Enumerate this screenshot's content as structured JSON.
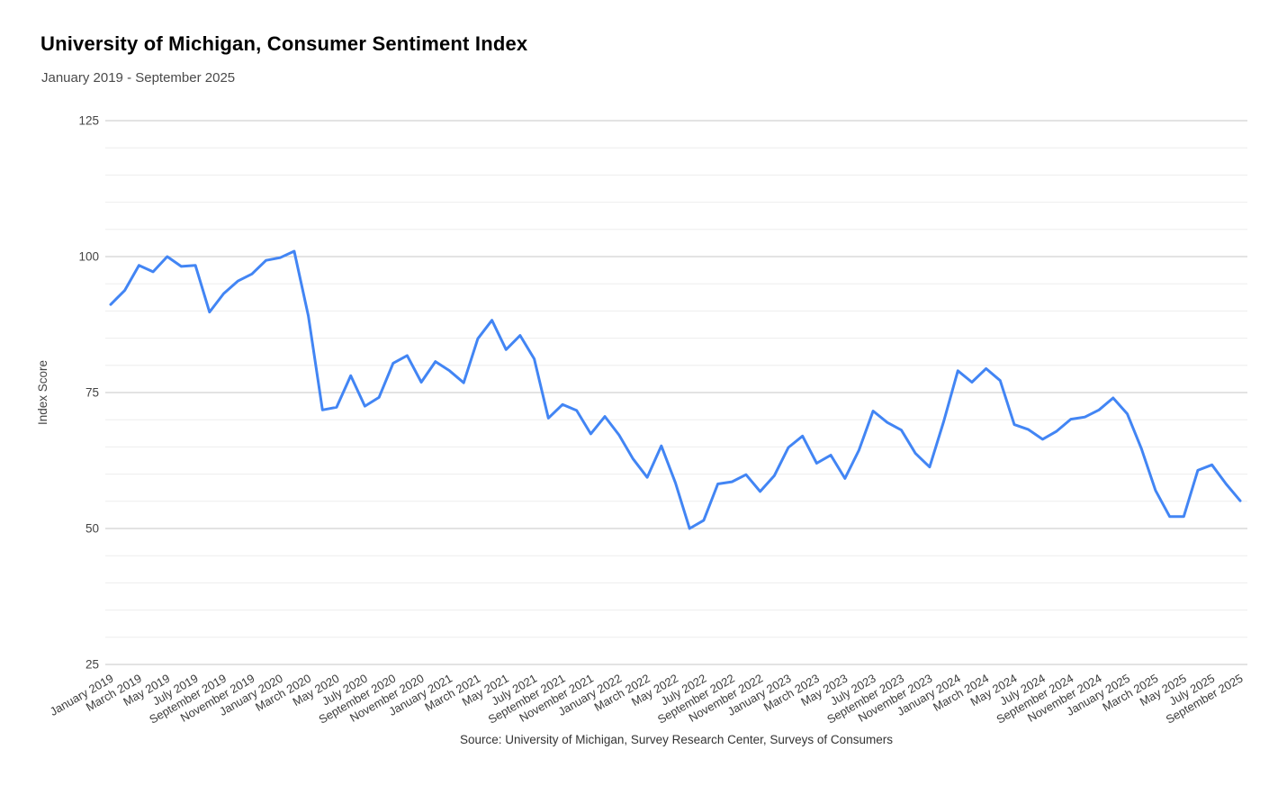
{
  "chart_data": {
    "type": "line",
    "title": "University of Michigan, Consumer Sentiment Index",
    "subtitle": "January 2019 - September 2025",
    "ylabel": "Index Score",
    "xlabel": "",
    "source": "Source: University of Michigan, Survey Research Center, Surveys of Consumers",
    "legend": "none",
    "grid": true,
    "ylim": [
      25,
      125
    ],
    "y_major_ticks": [
      25,
      50,
      75,
      100,
      125
    ],
    "y_minor_step": 5,
    "x_tick_interval": 2,
    "line_color": "#4285f4",
    "major_grid_color": "#c7c7c7",
    "minor_grid_color": "#ededed",
    "categories": [
      "January 2019",
      "February 2019",
      "March 2019",
      "April 2019",
      "May 2019",
      "June 2019",
      "July 2019",
      "August 2019",
      "September 2019",
      "October 2019",
      "November 2019",
      "December 2019",
      "January 2020",
      "February 2020",
      "March 2020",
      "April 2020",
      "May 2020",
      "June 2020",
      "July 2020",
      "August 2020",
      "September 2020",
      "October 2020",
      "November 2020",
      "December 2020",
      "January 2021",
      "February 2021",
      "March 2021",
      "April 2021",
      "May 2021",
      "June 2021",
      "July 2021",
      "August 2021",
      "September 2021",
      "October 2021",
      "November 2021",
      "December 2021",
      "January 2022",
      "February 2022",
      "March 2022",
      "April 2022",
      "May 2022",
      "June 2022",
      "July 2022",
      "August 2022",
      "September 2022",
      "October 2022",
      "November 2022",
      "December 2022",
      "January 2023",
      "February 2023",
      "March 2023",
      "April 2023",
      "May 2023",
      "June 2023",
      "July 2023",
      "August 2023",
      "September 2023",
      "October 2023",
      "November 2023",
      "December 2023",
      "January 2024",
      "February 2024",
      "March 2024",
      "April 2024",
      "May 2024",
      "June 2024",
      "July 2024",
      "August 2024",
      "September 2024",
      "October 2024",
      "November 2024",
      "December 2024",
      "January 2025",
      "February 2025",
      "March 2025",
      "April 2025",
      "May 2025",
      "June 2025",
      "July 2025",
      "August 2025",
      "September 2025"
    ],
    "values": [
      91.2,
      93.8,
      98.4,
      97.2,
      100.0,
      98.2,
      98.4,
      89.8,
      93.2,
      95.5,
      96.8,
      99.3,
      99.8,
      101.0,
      89.1,
      71.8,
      72.3,
      78.1,
      72.5,
      74.1,
      80.4,
      81.8,
      76.9,
      80.7,
      79.0,
      76.8,
      84.9,
      88.3,
      82.9,
      85.5,
      81.2,
      70.3,
      72.8,
      71.7,
      67.4,
      70.6,
      67.2,
      62.8,
      59.4,
      65.2,
      58.4,
      50.0,
      51.5,
      58.2,
      58.6,
      59.9,
      56.8,
      59.7,
      64.9,
      67.0,
      62.0,
      63.5,
      59.2,
      64.4,
      71.6,
      69.5,
      68.1,
      63.8,
      61.3,
      69.7,
      79.0,
      76.9,
      79.4,
      77.2,
      69.1,
      68.2,
      66.4,
      67.9,
      70.1,
      70.5,
      71.8,
      74.0,
      71.1,
      64.7,
      57.0,
      52.2,
      52.2,
      60.7,
      61.7,
      58.2,
      55.1
    ]
  }
}
